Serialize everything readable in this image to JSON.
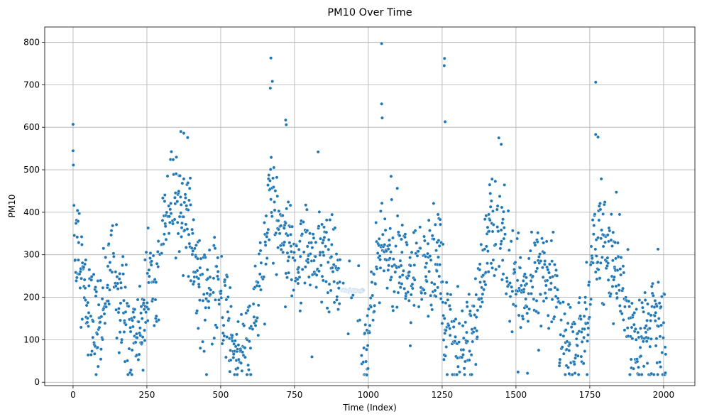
{
  "chart_data": {
    "type": "scatter",
    "title": "PM10 Over Time",
    "xlabel": "Time (Index)",
    "ylabel": "PM10",
    "xlim": [
      -96,
      2106
    ],
    "ylim": [
      -8,
      836
    ],
    "xticks": [
      0,
      250,
      500,
      750,
      1000,
      1250,
      1500,
      1750,
      2000
    ],
    "yticks": [
      0,
      100,
      200,
      300,
      400,
      500,
      600,
      700,
      800
    ],
    "grid": true,
    "marker_color": "#1f77b4",
    "x_range": [
      0,
      2007
    ],
    "approx_trend": [
      [
        0,
        607
      ],
      [
        5,
        250
      ],
      [
        15,
        350
      ],
      [
        25,
        300
      ],
      [
        40,
        200
      ],
      [
        60,
        170
      ],
      [
        80,
        120
      ],
      [
        100,
        150
      ],
      [
        130,
        300
      ],
      [
        150,
        230
      ],
      [
        170,
        180
      ],
      [
        190,
        90
      ],
      [
        210,
        110
      ],
      [
        230,
        140
      ],
      [
        260,
        220
      ],
      [
        290,
        300
      ],
      [
        320,
        400
      ],
      [
        350,
        440
      ],
      [
        380,
        420
      ],
      [
        410,
        280
      ],
      [
        440,
        220
      ],
      [
        470,
        200
      ],
      [
        500,
        220
      ],
      [
        530,
        110
      ],
      [
        560,
        80
      ],
      [
        590,
        70
      ],
      [
        620,
        170
      ],
      [
        650,
        300
      ],
      [
        670,
        450
      ],
      [
        700,
        380
      ],
      [
        730,
        330
      ],
      [
        760,
        280
      ],
      [
        790,
        320
      ],
      [
        820,
        290
      ],
      [
        850,
        290
      ],
      [
        880,
        250
      ],
      [
        910,
        215
      ],
      [
        940,
        215
      ],
      [
        970,
        215
      ],
      [
        985,
        60
      ],
      [
        1000,
        110
      ],
      [
        1020,
        250
      ],
      [
        1040,
        300
      ],
      [
        1060,
        330
      ],
      [
        1090,
        350
      ],
      [
        1120,
        280
      ],
      [
        1150,
        240
      ],
      [
        1180,
        220
      ],
      [
        1210,
        280
      ],
      [
        1240,
        300
      ],
      [
        1260,
        160
      ],
      [
        1280,
        120
      ],
      [
        1310,
        90
      ],
      [
        1340,
        90
      ],
      [
        1370,
        160
      ],
      [
        1400,
        330
      ],
      [
        1430,
        360
      ],
      [
        1460,
        370
      ],
      [
        1480,
        240
      ],
      [
        1510,
        200
      ],
      [
        1540,
        210
      ],
      [
        1570,
        230
      ],
      [
        1600,
        240
      ],
      [
        1630,
        200
      ],
      [
        1660,
        100
      ],
      [
        1690,
        70
      ],
      [
        1720,
        100
      ],
      [
        1745,
        150
      ],
      [
        1760,
        350
      ],
      [
        1780,
        300
      ],
      [
        1800,
        330
      ],
      [
        1830,
        260
      ],
      [
        1860,
        220
      ],
      [
        1890,
        120
      ],
      [
        1920,
        90
      ],
      [
        1950,
        130
      ],
      [
        1980,
        140
      ],
      [
        2007,
        100
      ]
    ],
    "spread": 60,
    "extreme_points": [
      [
        0,
        607
      ],
      [
        670,
        763
      ],
      [
        675,
        708
      ],
      [
        668,
        692
      ],
      [
        720,
        617
      ],
      [
        722,
        606
      ],
      [
        1045,
        797
      ],
      [
        1045,
        655
      ],
      [
        1047,
        622
      ],
      [
        1258,
        762
      ],
      [
        1257,
        745
      ],
      [
        1260,
        613
      ],
      [
        1770,
        706
      ],
      [
        1770,
        583
      ],
      [
        1778,
        577
      ],
      [
        365,
        590
      ],
      [
        375,
        586
      ],
      [
        1450,
        560
      ],
      [
        830,
        542
      ],
      [
        995,
        17
      ],
      [
        1680,
        20
      ]
    ]
  }
}
